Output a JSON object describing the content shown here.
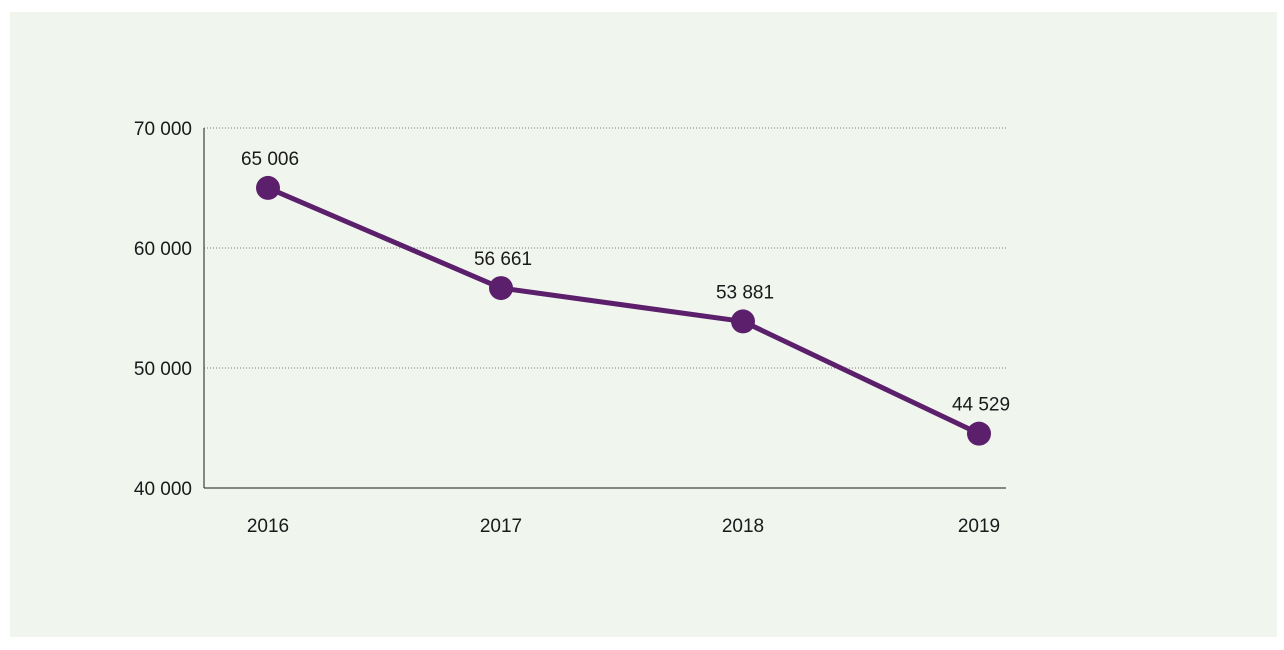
{
  "chart_data": {
    "type": "line",
    "title": "",
    "xlabel": "",
    "ylabel": "",
    "categories": [
      "2016",
      "2017",
      "2018",
      "2019"
    ],
    "series": [
      {
        "values": [
          65006,
          56661,
          53881,
          44529
        ],
        "data_labels": [
          "65 006",
          "56 661",
          "53 881",
          "44 529"
        ],
        "color": "#5b1f6b"
      }
    ],
    "ylim": [
      40000,
      70000
    ],
    "y_ticks": [
      40000,
      50000,
      60000,
      70000
    ],
    "y_tick_labels": [
      "40 000",
      "50 000",
      "60 000",
      "70 000"
    ],
    "grid": "horizontal-dotted",
    "legend": "none",
    "colors": {
      "panel_background": "#f0f5ee",
      "series_line": "#5b1f6b",
      "axis": "#1a1a1a",
      "gridline": "#7a7a7a"
    }
  }
}
